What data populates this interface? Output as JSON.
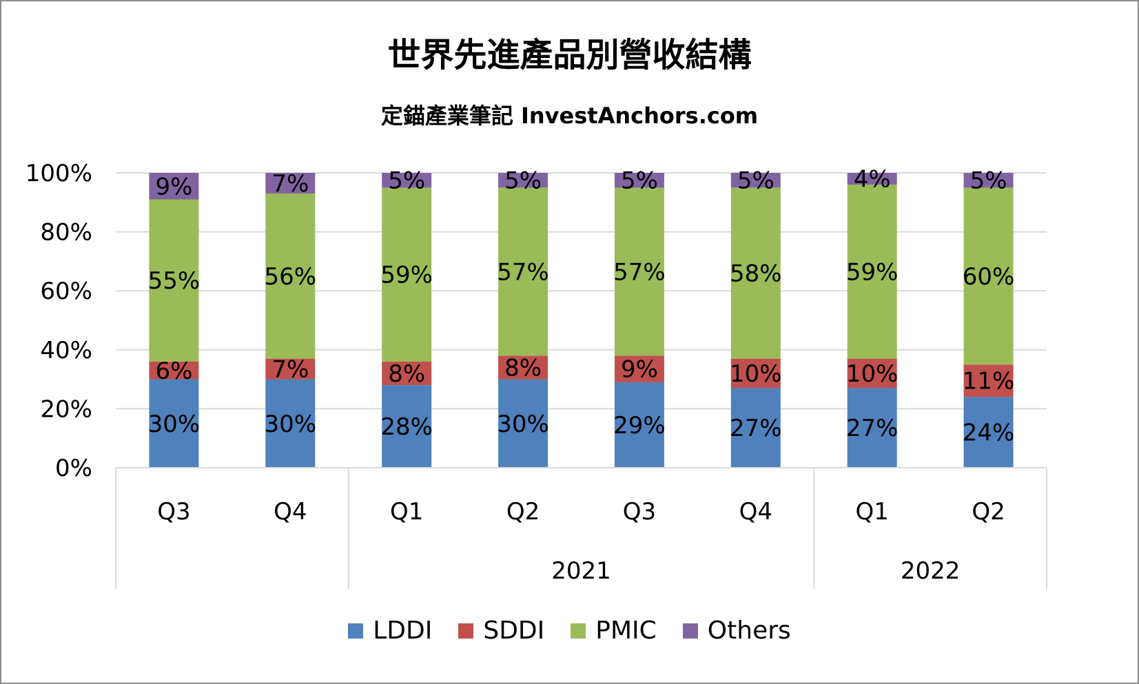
{
  "chart_data": {
    "type": "bar",
    "stacked": true,
    "percent_stacked": true,
    "title": "世界先進產品別營收結構",
    "subtitle": "定錨產業筆記 InvestAnchors.com",
    "categories": [
      "Q3",
      "Q4",
      "Q1",
      "Q2",
      "Q3",
      "Q4",
      "Q1",
      "Q2"
    ],
    "category_groups": [
      {
        "label": "",
        "count": 2
      },
      {
        "label": "2021",
        "count": 4
      },
      {
        "label": "2022",
        "count": 2
      }
    ],
    "y_ticks": [
      "0%",
      "20%",
      "40%",
      "60%",
      "80%",
      "100%"
    ],
    "ylim": [
      0,
      100
    ],
    "grid": true,
    "legend_position": "bottom",
    "series": [
      {
        "name": "LDDI",
        "color": "#4f81bd",
        "values": [
          30,
          30,
          28,
          30,
          29,
          27,
          27,
          24
        ],
        "labels": [
          "30%",
          "30%",
          "28%",
          "30%",
          "29%",
          "27%",
          "27%",
          "24%"
        ]
      },
      {
        "name": "SDDI",
        "color": "#c0504d",
        "values": [
          6,
          7,
          8,
          8,
          9,
          10,
          10,
          11
        ],
        "labels": [
          "6%",
          "7%",
          "8%",
          "8%",
          "9%",
          "10%",
          "10%",
          "11%"
        ]
      },
      {
        "name": "PMIC",
        "color": "#9bbb59",
        "values": [
          55,
          56,
          59,
          57,
          57,
          58,
          59,
          60
        ],
        "labels": [
          "55%",
          "56%",
          "59%",
          "57%",
          "57%",
          "58%",
          "59%",
          "60%"
        ]
      },
      {
        "name": "Others",
        "color": "#8064a2",
        "values": [
          9,
          7,
          5,
          5,
          5,
          5,
          4,
          5
        ],
        "labels": [
          "9%",
          "7%",
          "5%",
          "5%",
          "5%",
          "5%",
          "4%",
          "5%"
        ]
      }
    ]
  }
}
